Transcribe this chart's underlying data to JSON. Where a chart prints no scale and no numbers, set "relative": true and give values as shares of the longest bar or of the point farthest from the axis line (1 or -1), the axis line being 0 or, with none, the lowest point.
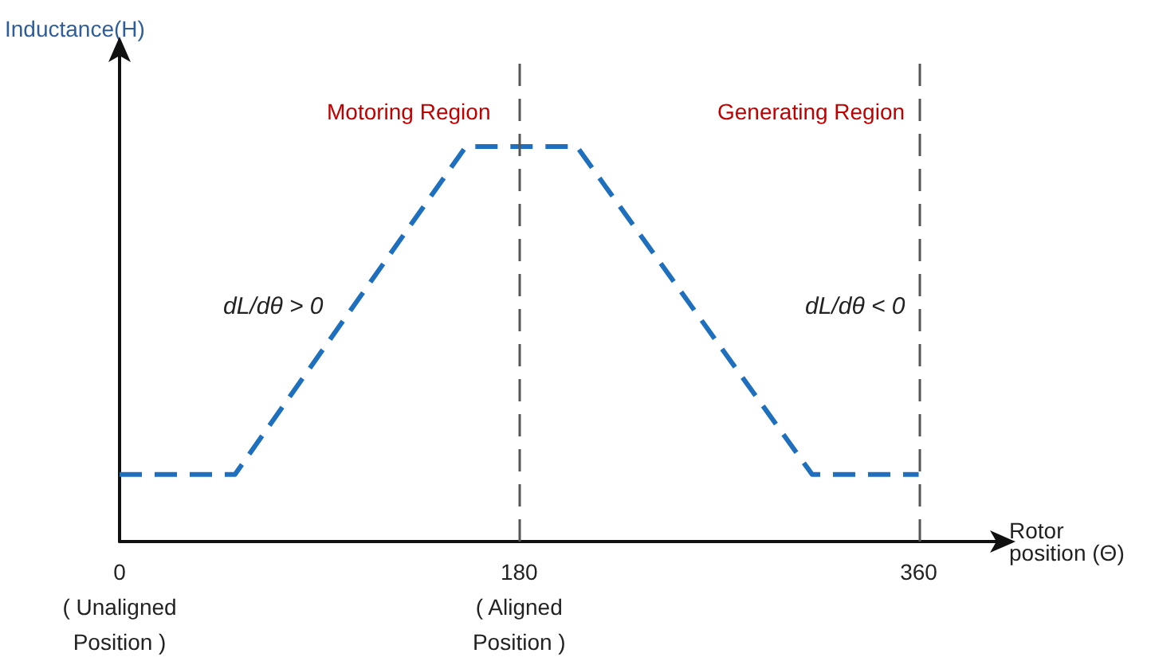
{
  "chart_data": {
    "type": "line",
    "relative": true,
    "xlabel": "Rotor position (Θ)",
    "ylabel": "Inductance(H)",
    "x": [
      0,
      52,
      156,
      206,
      312,
      360
    ],
    "series": [
      {
        "color": "#1f6fbf",
        "values": [
          0.17,
          0.17,
          1,
          1,
          0.17,
          0.17
        ]
      }
    ],
    "xlim": [
      0,
      395
    ],
    "xticks": [
      {
        "value": 0,
        "label": "0\n( Unaligned\nPosition )"
      },
      {
        "value": 180,
        "label": "180\n( Aligned\nPosition )"
      },
      {
        "value": 360,
        "label": "360"
      }
    ],
    "ref_lines": [
      {
        "axis": "x",
        "value": 180,
        "color": "#555555",
        "line_style": "dashed"
      },
      {
        "axis": "x",
        "value": 360,
        "color": "#555555",
        "line_style": "dashed"
      }
    ],
    "annotations": [
      "Motoring Region",
      "Generating Region",
      "dL/dθ > 0",
      "dL/dθ < 0"
    ],
    "line_style": "dashed",
    "marker": "none",
    "grid": false
  }
}
